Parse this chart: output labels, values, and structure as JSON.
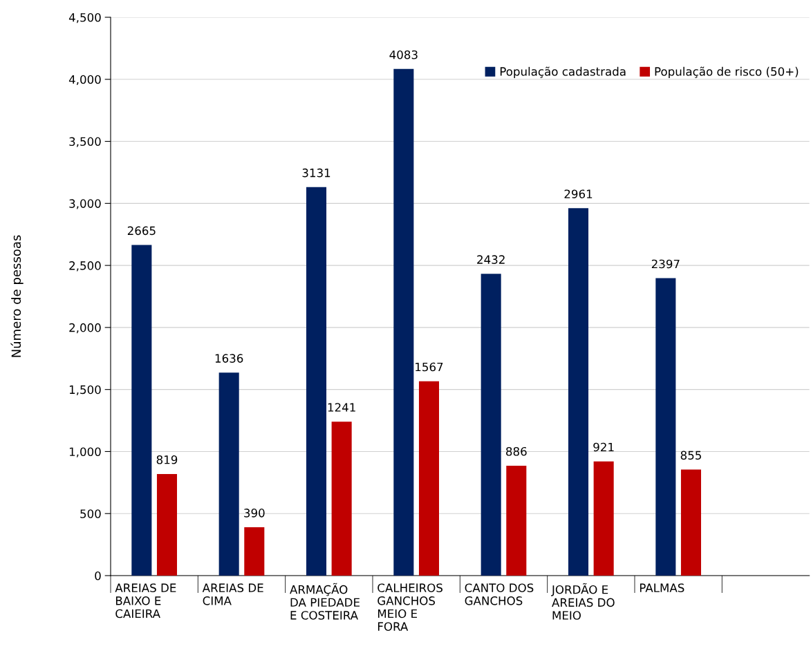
{
  "chart_data": {
    "type": "bar",
    "ylabel": "Número de pessoas",
    "categories": [
      "AREIAS DE\nBAIXO E\nCAIEIRA",
      "AREIAS DE\nCIMA",
      "ARMAÇÃO\nDA PIEDADE\nE COSTEIRA",
      "CALHEIROS\nGANCHOS\nMEIO E\nFORA",
      "CANTO DOS\nGANCHOS",
      "JORDÃO E\nAREIAS DO\nMEIO",
      "PALMAS",
      null
    ],
    "series": [
      {
        "name": "População cadastrada",
        "color": "#002060",
        "values": [
          2665,
          1636,
          3131,
          4083,
          2432,
          2961,
          2397,
          null
        ]
      },
      {
        "name": "População de risco (50+)",
        "color": "#c00000",
        "values": [
          819,
          390,
          1241,
          1567,
          886,
          921,
          855,
          null
        ]
      }
    ],
    "ylim": [
      0,
      4500
    ],
    "yticks": [
      0,
      {
        "value": 500,
        "label": "500"
      },
      {
        "value": 1000,
        "label": "1,000"
      },
      {
        "value": 1500,
        "label": "1,500"
      },
      {
        "value": 2000,
        "label": "2,000"
      },
      {
        "value": 2500,
        "label": "2,500"
      },
      {
        "value": 3000,
        "label": "3,000"
      },
      {
        "value": 3500,
        "label": "3,500"
      },
      {
        "value": 4000,
        "label": "4,000"
      },
      {
        "value": 4500,
        "label": "4,500"
      }
    ],
    "grid": "y",
    "legend": "top right",
    "data_labels": true
  }
}
